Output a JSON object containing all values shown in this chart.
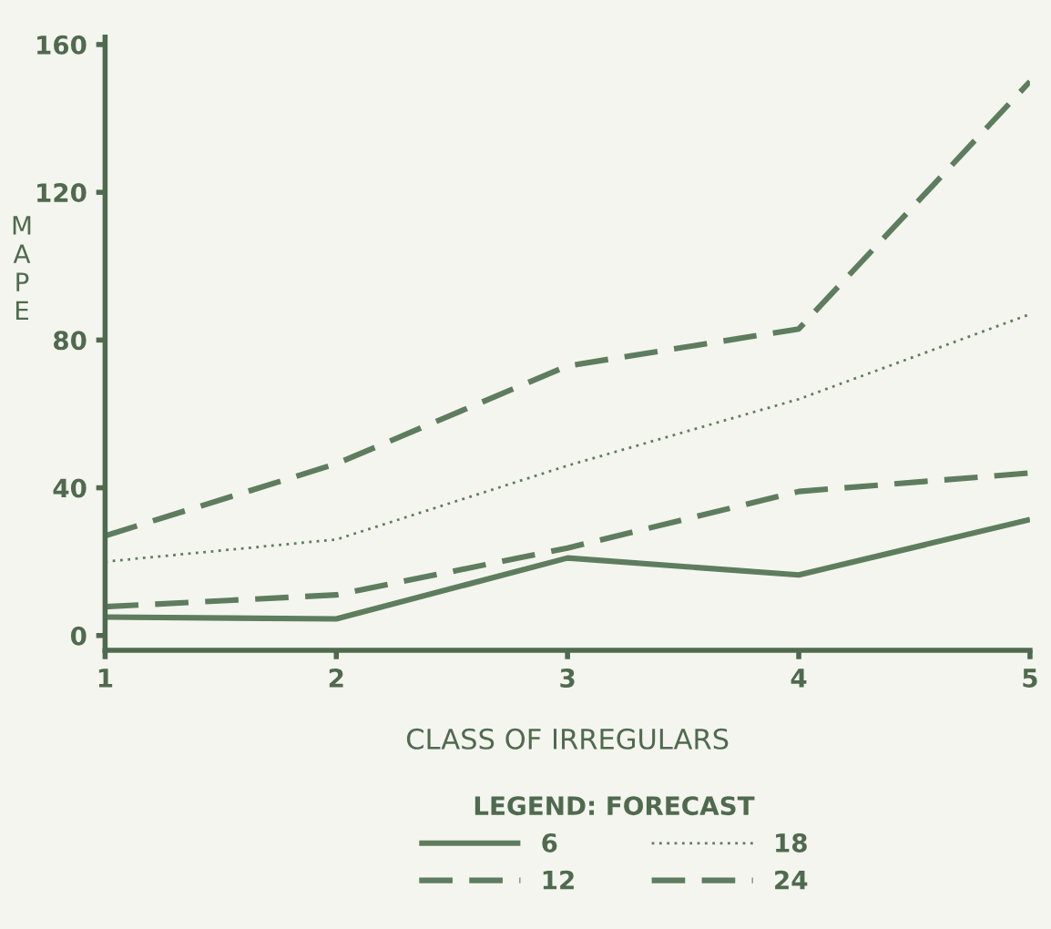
{
  "chart_data": {
    "type": "line",
    "xlabel": "CLASS OF IRREGULARS",
    "ylabel": "MAPE",
    "legend_title": "LEGEND: FORECAST",
    "x": [
      1,
      2,
      3,
      4,
      5
    ],
    "series": [
      {
        "name": "6",
        "color": "#5e7d5e",
        "line_style": "solid",
        "values": [
          5,
          4.5,
          21,
          16.4,
          31.4
        ]
      },
      {
        "name": "12",
        "color": "#5e7d5e",
        "line_style": "dashed",
        "values": [
          7.8,
          11,
          23.7,
          39,
          44
        ]
      },
      {
        "name": "18",
        "color": "#5e7d5e",
        "line_style": "dotted",
        "values": [
          20,
          26,
          46,
          64,
          87
        ]
      },
      {
        "name": "24",
        "color": "#5e7d5e",
        "line_style": "dashed",
        "values": [
          27,
          46.5,
          73,
          83,
          150
        ]
      }
    ],
    "xlim": [
      1,
      5
    ],
    "ylim": [
      -4,
      162
    ],
    "xticks": [
      1,
      2,
      3,
      4,
      5
    ],
    "yticks": [
      0,
      40,
      80,
      120,
      160
    ],
    "grid": false,
    "legend": "bottom",
    "marker": "none"
  }
}
